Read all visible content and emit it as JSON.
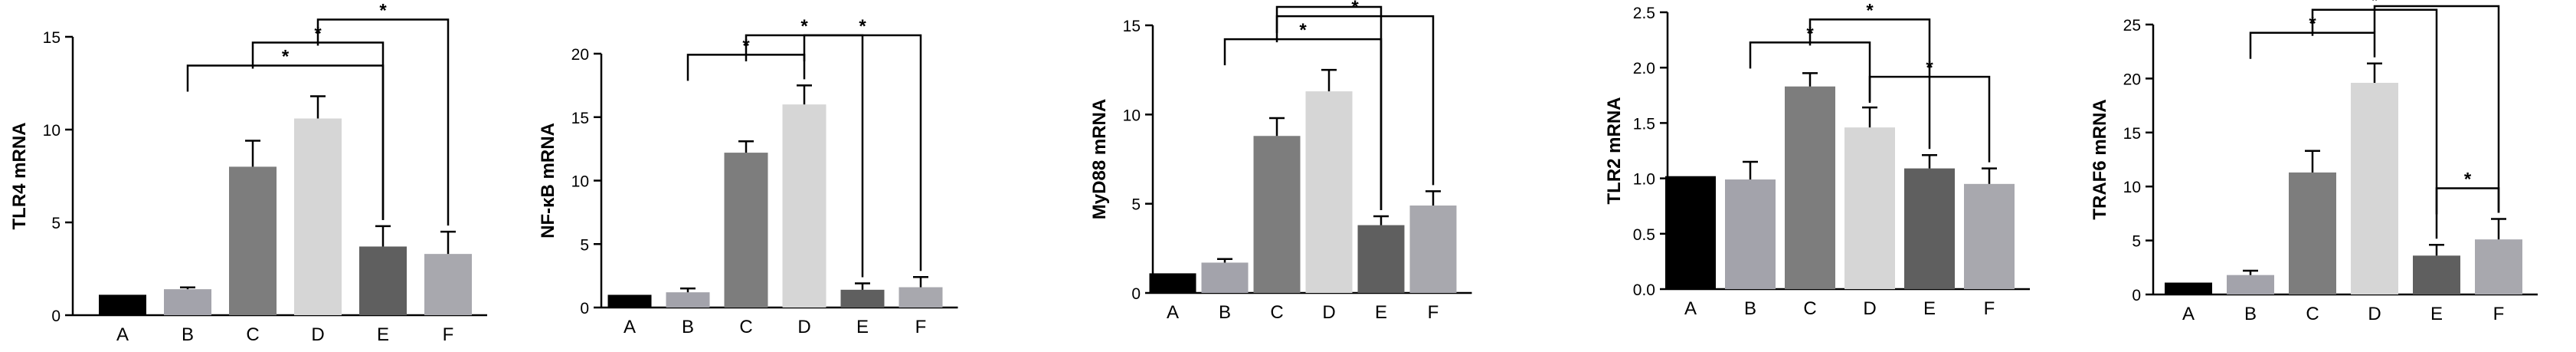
{
  "colors": {
    "A": "#000000",
    "B": "#a3a3ab",
    "C": "#7d7d7d",
    "D": "#d6d6d6",
    "E": "#5f5f5f",
    "F": "#a8a8ae",
    "axis": "#000000"
  },
  "chart_data": [
    {
      "type": "bar",
      "title": "",
      "xlabel": "",
      "ylabel": "TLR4 mRNA",
      "categories": [
        "A",
        "B",
        "C",
        "D",
        "E",
        "F"
      ],
      "values": [
        1.1,
        1.4,
        8.0,
        10.6,
        3.7,
        3.3
      ],
      "errors": [
        0,
        0.1,
        1.4,
        1.2,
        1.1,
        1.2
      ],
      "ylim": [
        0,
        15
      ],
      "yticks": [
        "0",
        "5",
        "10",
        "15"
      ],
      "significance": [
        {
          "from": "B",
          "to": "E",
          "label": "*"
        },
        {
          "from": "C",
          "to": "E",
          "label": "*"
        },
        {
          "from": "D",
          "to": "F",
          "label": "*"
        }
      ]
    },
    {
      "type": "bar",
      "title": "",
      "xlabel": "",
      "ylabel": "NF-κB mRNA",
      "categories": [
        "A",
        "B",
        "C",
        "D",
        "E",
        "F"
      ],
      "values": [
        1.0,
        1.2,
        12.2,
        16.0,
        1.4,
        1.6
      ],
      "errors": [
        0,
        0.3,
        0.9,
        1.5,
        0.5,
        0.8
      ],
      "ylim": [
        0,
        20
      ],
      "yticks": [
        "0",
        "5",
        "10",
        "15",
        "20"
      ],
      "significance": [
        {
          "from": "B",
          "to": "D",
          "label": "*"
        },
        {
          "from": "D",
          "to": "F",
          "label": "*"
        },
        {
          "from": "C",
          "to": "E",
          "label": "*"
        }
      ]
    },
    {
      "type": "bar",
      "title": "",
      "xlabel": "",
      "ylabel": "MyD88 mRNA",
      "categories": [
        "A",
        "B",
        "C",
        "D",
        "E",
        "F"
      ],
      "values": [
        1.1,
        1.7,
        8.8,
        11.3,
        3.8,
        4.9
      ],
      "errors": [
        0,
        0.2,
        1.0,
        1.2,
        0.5,
        0.8
      ],
      "ylim": [
        0,
        15
      ],
      "yticks": [
        "0",
        "5",
        "10",
        "15"
      ],
      "significance": [
        {
          "from": "B",
          "to": "E",
          "label": "*"
        },
        {
          "from": "C",
          "to": "F",
          "label": "*"
        },
        {
          "from": "C",
          "to": "E",
          "label": "*"
        }
      ]
    },
    {
      "type": "bar",
      "title": "",
      "xlabel": "",
      "ylabel": "TLR2 mRNA",
      "categories": [
        "A",
        "B",
        "C",
        "D",
        "E",
        "F"
      ],
      "values": [
        1.02,
        0.99,
        1.83,
        1.46,
        1.09,
        0.95
      ],
      "errors": [
        0,
        0.16,
        0.12,
        0.18,
        0.12,
        0.14
      ],
      "ylim": [
        0,
        2.5
      ],
      "yticks": [
        "0.0",
        "0.5",
        "1.0",
        "1.5",
        "2.0",
        "2.5"
      ],
      "significance": [
        {
          "from": "B",
          "to": "D",
          "label": "*"
        },
        {
          "from": "C",
          "to": "E",
          "label": "*"
        },
        {
          "from": "D",
          "to": "F",
          "label": "*"
        }
      ]
    },
    {
      "type": "bar",
      "title": "",
      "xlabel": "",
      "ylabel": "TRAF6 mRNA",
      "categories": [
        "A",
        "B",
        "C",
        "D",
        "E",
        "F"
      ],
      "values": [
        1.1,
        1.8,
        11.3,
        19.6,
        3.6,
        5.1
      ],
      "errors": [
        0,
        0.4,
        2.0,
        1.8,
        1.0,
        1.9
      ],
      "ylim": [
        0,
        25
      ],
      "yticks": [
        "0",
        "5",
        "10",
        "15",
        "20",
        "25"
      ],
      "significance": [
        {
          "from": "B",
          "to": "D",
          "label": "*"
        },
        {
          "from": "C",
          "to": "E",
          "label": "*"
        },
        {
          "from": "D",
          "to": "F",
          "label": "*"
        },
        {
          "from": "E",
          "to": "F",
          "label": "*"
        }
      ]
    }
  ]
}
